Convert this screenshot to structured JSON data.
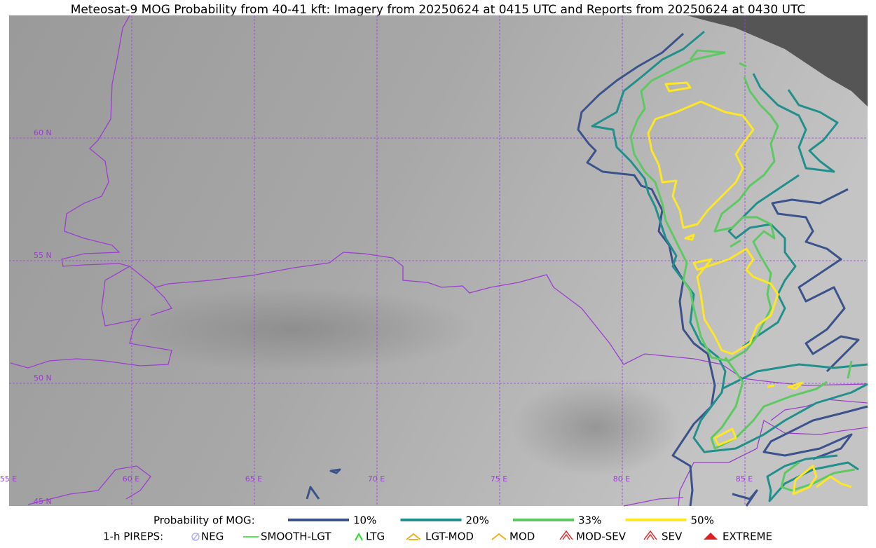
{
  "title": "Meteosat-9 MOG Probability from 40-41 kft: Imagery from 20250624 at 0415 UTC and Reports from 20250624 at 0430 UTC",
  "map": {
    "lat_labels": [
      "60 N",
      "55 N",
      "50 N",
      "45 N"
    ],
    "lon_labels": [
      "55 E",
      "60 E",
      "65 E",
      "70 E",
      "75 E",
      "80 E",
      "85 E"
    ]
  },
  "legend": {
    "probability": {
      "label": "Probability of MOG:",
      "levels": [
        {
          "label": "10%",
          "color": "#3b528b"
        },
        {
          "label": "20%",
          "color": "#21908c"
        },
        {
          "label": "33%",
          "color": "#5ec962"
        },
        {
          "label": "50%",
          "color": "#fde725"
        }
      ]
    },
    "pireps": {
      "label": "1-h PIREPS:",
      "items": [
        "NEG",
        "SMOOTH-LGT",
        "LTG",
        "LGT-MOD",
        "MOD",
        "MOD-SEV",
        "SEV",
        "EXTREME"
      ]
    }
  }
}
